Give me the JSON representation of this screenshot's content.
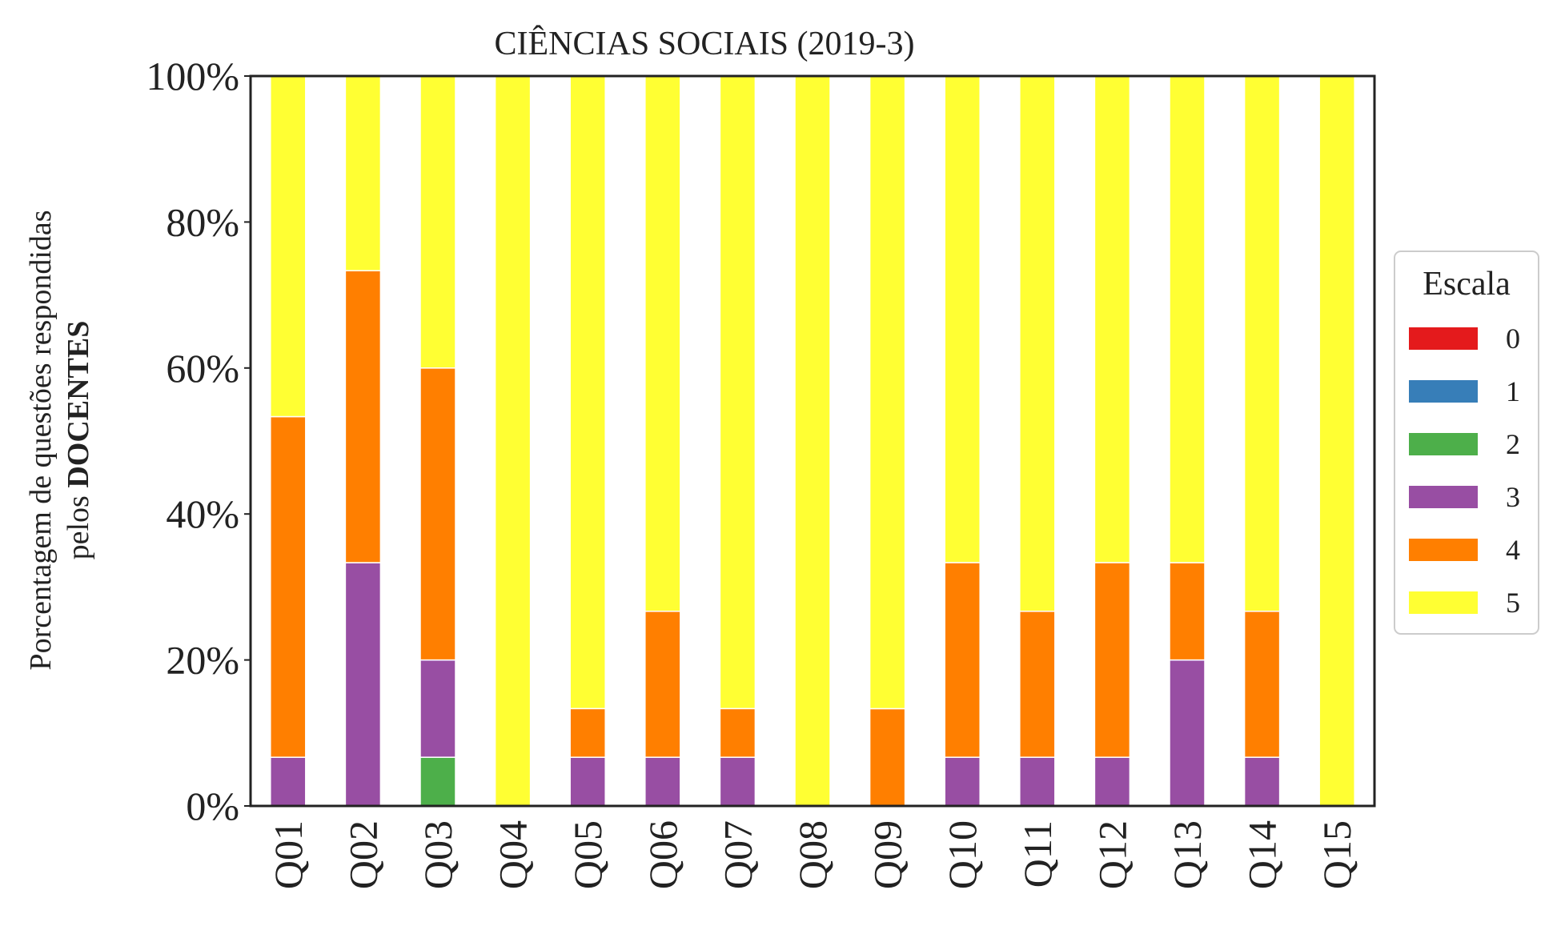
{
  "chart_data": {
    "type": "bar",
    "stacked": true,
    "title": "CIÊNCIAS SOCIAIS (2019-3)",
    "ylabel_line1": "Porcentagem de questões respondidas",
    "ylabel_line2_prefix": "pelos ",
    "ylabel_line2_bold": "DOCENTES",
    "categories": [
      "Q01",
      "Q02",
      "Q03",
      "Q04",
      "Q05",
      "Q06",
      "Q07",
      "Q08",
      "Q09",
      "Q10",
      "Q11",
      "Q12",
      "Q13",
      "Q14",
      "Q15"
    ],
    "ylim": [
      0,
      100
    ],
    "yticks": [
      0,
      20,
      40,
      60,
      80,
      100
    ],
    "ytick_labels": [
      "0%",
      "20%",
      "40%",
      "60%",
      "80%",
      "100%"
    ],
    "legend": {
      "title": "Escala",
      "position": "right"
    },
    "series": [
      {
        "name": "0",
        "color": "#e41a1c",
        "values": [
          0,
          0,
          0,
          0,
          0,
          0,
          0,
          0,
          0,
          0,
          0,
          0,
          0,
          0,
          0
        ]
      },
      {
        "name": "1",
        "color": "#377eb8",
        "values": [
          0,
          0,
          0,
          0,
          0,
          0,
          0,
          0,
          0,
          0,
          0,
          0,
          0,
          0,
          0
        ]
      },
      {
        "name": "2",
        "color": "#4daf4a",
        "values": [
          0,
          0,
          6.67,
          0,
          0,
          0,
          0,
          0,
          0,
          0,
          0,
          0,
          0,
          0,
          0
        ]
      },
      {
        "name": "3",
        "color": "#984ea3",
        "values": [
          6.67,
          33.33,
          13.33,
          0,
          6.67,
          6.67,
          6.67,
          0,
          0,
          6.67,
          6.67,
          6.67,
          20,
          6.67,
          0
        ]
      },
      {
        "name": "4",
        "color": "#ff7f00",
        "values": [
          46.67,
          40,
          40,
          0,
          6.67,
          20,
          6.67,
          0,
          13.33,
          26.67,
          20,
          26.67,
          13.33,
          20,
          0
        ]
      },
      {
        "name": "5",
        "color": "#ffff33",
        "values": [
          46.66,
          26.67,
          40,
          100,
          86.66,
          73.33,
          86.67,
          100,
          86.67,
          66.66,
          73.33,
          66.67,
          66.67,
          73.33,
          100
        ]
      }
    ]
  }
}
